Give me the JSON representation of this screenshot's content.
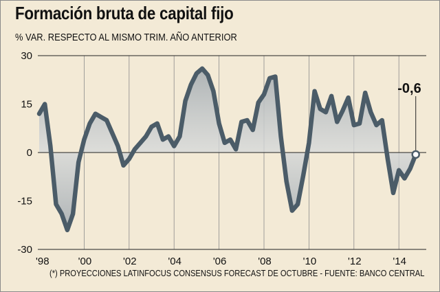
{
  "header": {
    "title": "Formación bruta de capital fijo",
    "subtitle": "% VAR. RESPECTO AL MISMO TRIM. AÑO ANTERIOR"
  },
  "footnote": "(*) PROYECCIONES LATINFOCUS CONSENSUS FORECAST DE OCTUBRE - FUENTE: BANCO CENTRAL",
  "colors": {
    "background": "#f3ead6",
    "line": "#4b5c68",
    "fill_gradient_dark": "#aab0b3",
    "fill_gradient_light": "#ffffff",
    "gridline": "#8a8a8a"
  },
  "chart_data": {
    "type": "area",
    "title": "Formación bruta de capital fijo",
    "subtitle": "% VAR. RESPECTO AL MISMO TRIM. AÑO ANTERIOR",
    "x_unit": "year (quarterly)",
    "ylim": [
      -30,
      30
    ],
    "yticks": [
      30,
      15,
      0,
      -15,
      -30
    ],
    "xlim": [
      1998.0,
      2015.0
    ],
    "xticks": [
      {
        "value": 1998,
        "label": "'98"
      },
      {
        "value": 2000,
        "label": "'00"
      },
      {
        "value": 2002,
        "label": "'02"
      },
      {
        "value": 2004,
        "label": "'04"
      },
      {
        "value": 2006,
        "label": "'06"
      },
      {
        "value": 2008,
        "label": "'08"
      },
      {
        "value": 2010,
        "label": "'10"
      },
      {
        "value": 2012,
        "label": "'12"
      },
      {
        "value": 2014,
        "label": "'14"
      }
    ],
    "grid": "vertical lines at even years",
    "series": [
      {
        "x": [
          1998.0,
          1998.25,
          1998.5,
          1998.75,
          1999.0,
          1999.25,
          1999.5,
          1999.75,
          2000.0,
          2000.25,
          2000.5,
          2000.75,
          2001.0,
          2001.25,
          2001.5,
          2001.75,
          2002.0,
          2002.25,
          2002.5,
          2002.75,
          2003.0,
          2003.25,
          2003.5,
          2003.75,
          2004.0,
          2004.25,
          2004.5,
          2004.75,
          2005.0,
          2005.25,
          2005.5,
          2005.75,
          2006.0,
          2006.25,
          2006.5,
          2006.75,
          2007.0,
          2007.25,
          2007.5,
          2007.75,
          2008.0,
          2008.25,
          2008.5,
          2008.75,
          2009.0,
          2009.25,
          2009.5,
          2009.75,
          2010.0,
          2010.25,
          2010.5,
          2010.75,
          2011.0,
          2011.25,
          2011.5,
          2011.75,
          2012.0,
          2012.25,
          2012.5,
          2012.75,
          2013.0,
          2013.25,
          2013.5,
          2013.75,
          2014.0,
          2014.25,
          2014.5,
          2014.75
        ],
        "values": [
          12,
          15,
          2,
          -16,
          -19,
          -24,
          -19,
          -3,
          4,
          9,
          12,
          11,
          10,
          6,
          2,
          -4,
          -2,
          1,
          3,
          5,
          8,
          9,
          4,
          5,
          2,
          5,
          16,
          21,
          24.5,
          26,
          24,
          19,
          9,
          3,
          4,
          1,
          9.5,
          10,
          7,
          15.5,
          18,
          23,
          23.5,
          5,
          -9,
          -18,
          -16,
          -7,
          3,
          19,
          13.5,
          12.5,
          17.5,
          9.5,
          13,
          17,
          8.5,
          9,
          18.5,
          12.5,
          8.5,
          10,
          -2,
          -12.5,
          -5.5,
          -8,
          -5,
          -0.6
        ]
      }
    ],
    "annotations": [
      {
        "label": "-0,6",
        "x": 2014.75,
        "y": -0.6
      }
    ]
  }
}
